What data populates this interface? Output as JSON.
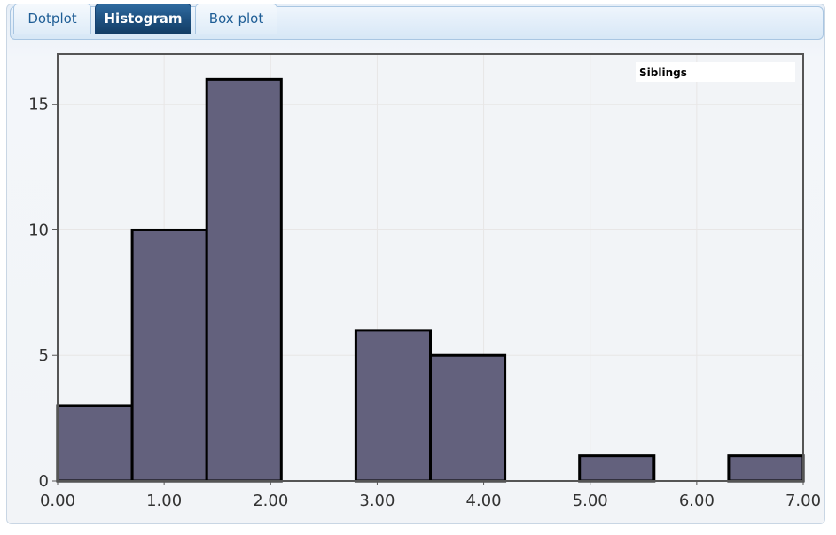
{
  "tabs": [
    {
      "label": "Dotplot",
      "active": false
    },
    {
      "label": "Histogram",
      "active": true
    },
    {
      "label": "Box plot",
      "active": false
    }
  ],
  "chart_data": {
    "type": "bar",
    "variable": "Siblings",
    "bin_edges": [
      0,
      0.7,
      1.4,
      2.1,
      2.8,
      3.5,
      4.2,
      4.9,
      5.6,
      6.3,
      7.0
    ],
    "counts": [
      3,
      10,
      16,
      0,
      6,
      5,
      0,
      1,
      0,
      1
    ],
    "x_ticks": [
      {
        "value": 0,
        "label": "0.00"
      },
      {
        "value": 1,
        "label": "1.00"
      },
      {
        "value": 2,
        "label": "2.00"
      },
      {
        "value": 3,
        "label": "3.00"
      },
      {
        "value": 4,
        "label": "4.00"
      },
      {
        "value": 5,
        "label": "5.00"
      },
      {
        "value": 6,
        "label": "6.00"
      },
      {
        "value": 7,
        "label": "7.00"
      }
    ],
    "y_ticks": [
      {
        "value": 0,
        "label": "0"
      },
      {
        "value": 5,
        "label": "5"
      },
      {
        "value": 10,
        "label": "10"
      },
      {
        "value": 15,
        "label": "15"
      }
    ],
    "xlim": [
      0,
      7
    ],
    "ylim": [
      0,
      17
    ],
    "grid": true,
    "legend": {
      "label": "Siblings",
      "position": "top-right"
    },
    "colors": {
      "bar_fill": "#63617d",
      "bar_stroke": "#000000",
      "plot_background": "#f2f4f7",
      "grid": "#e8e6e6",
      "axis": "#555555"
    }
  }
}
